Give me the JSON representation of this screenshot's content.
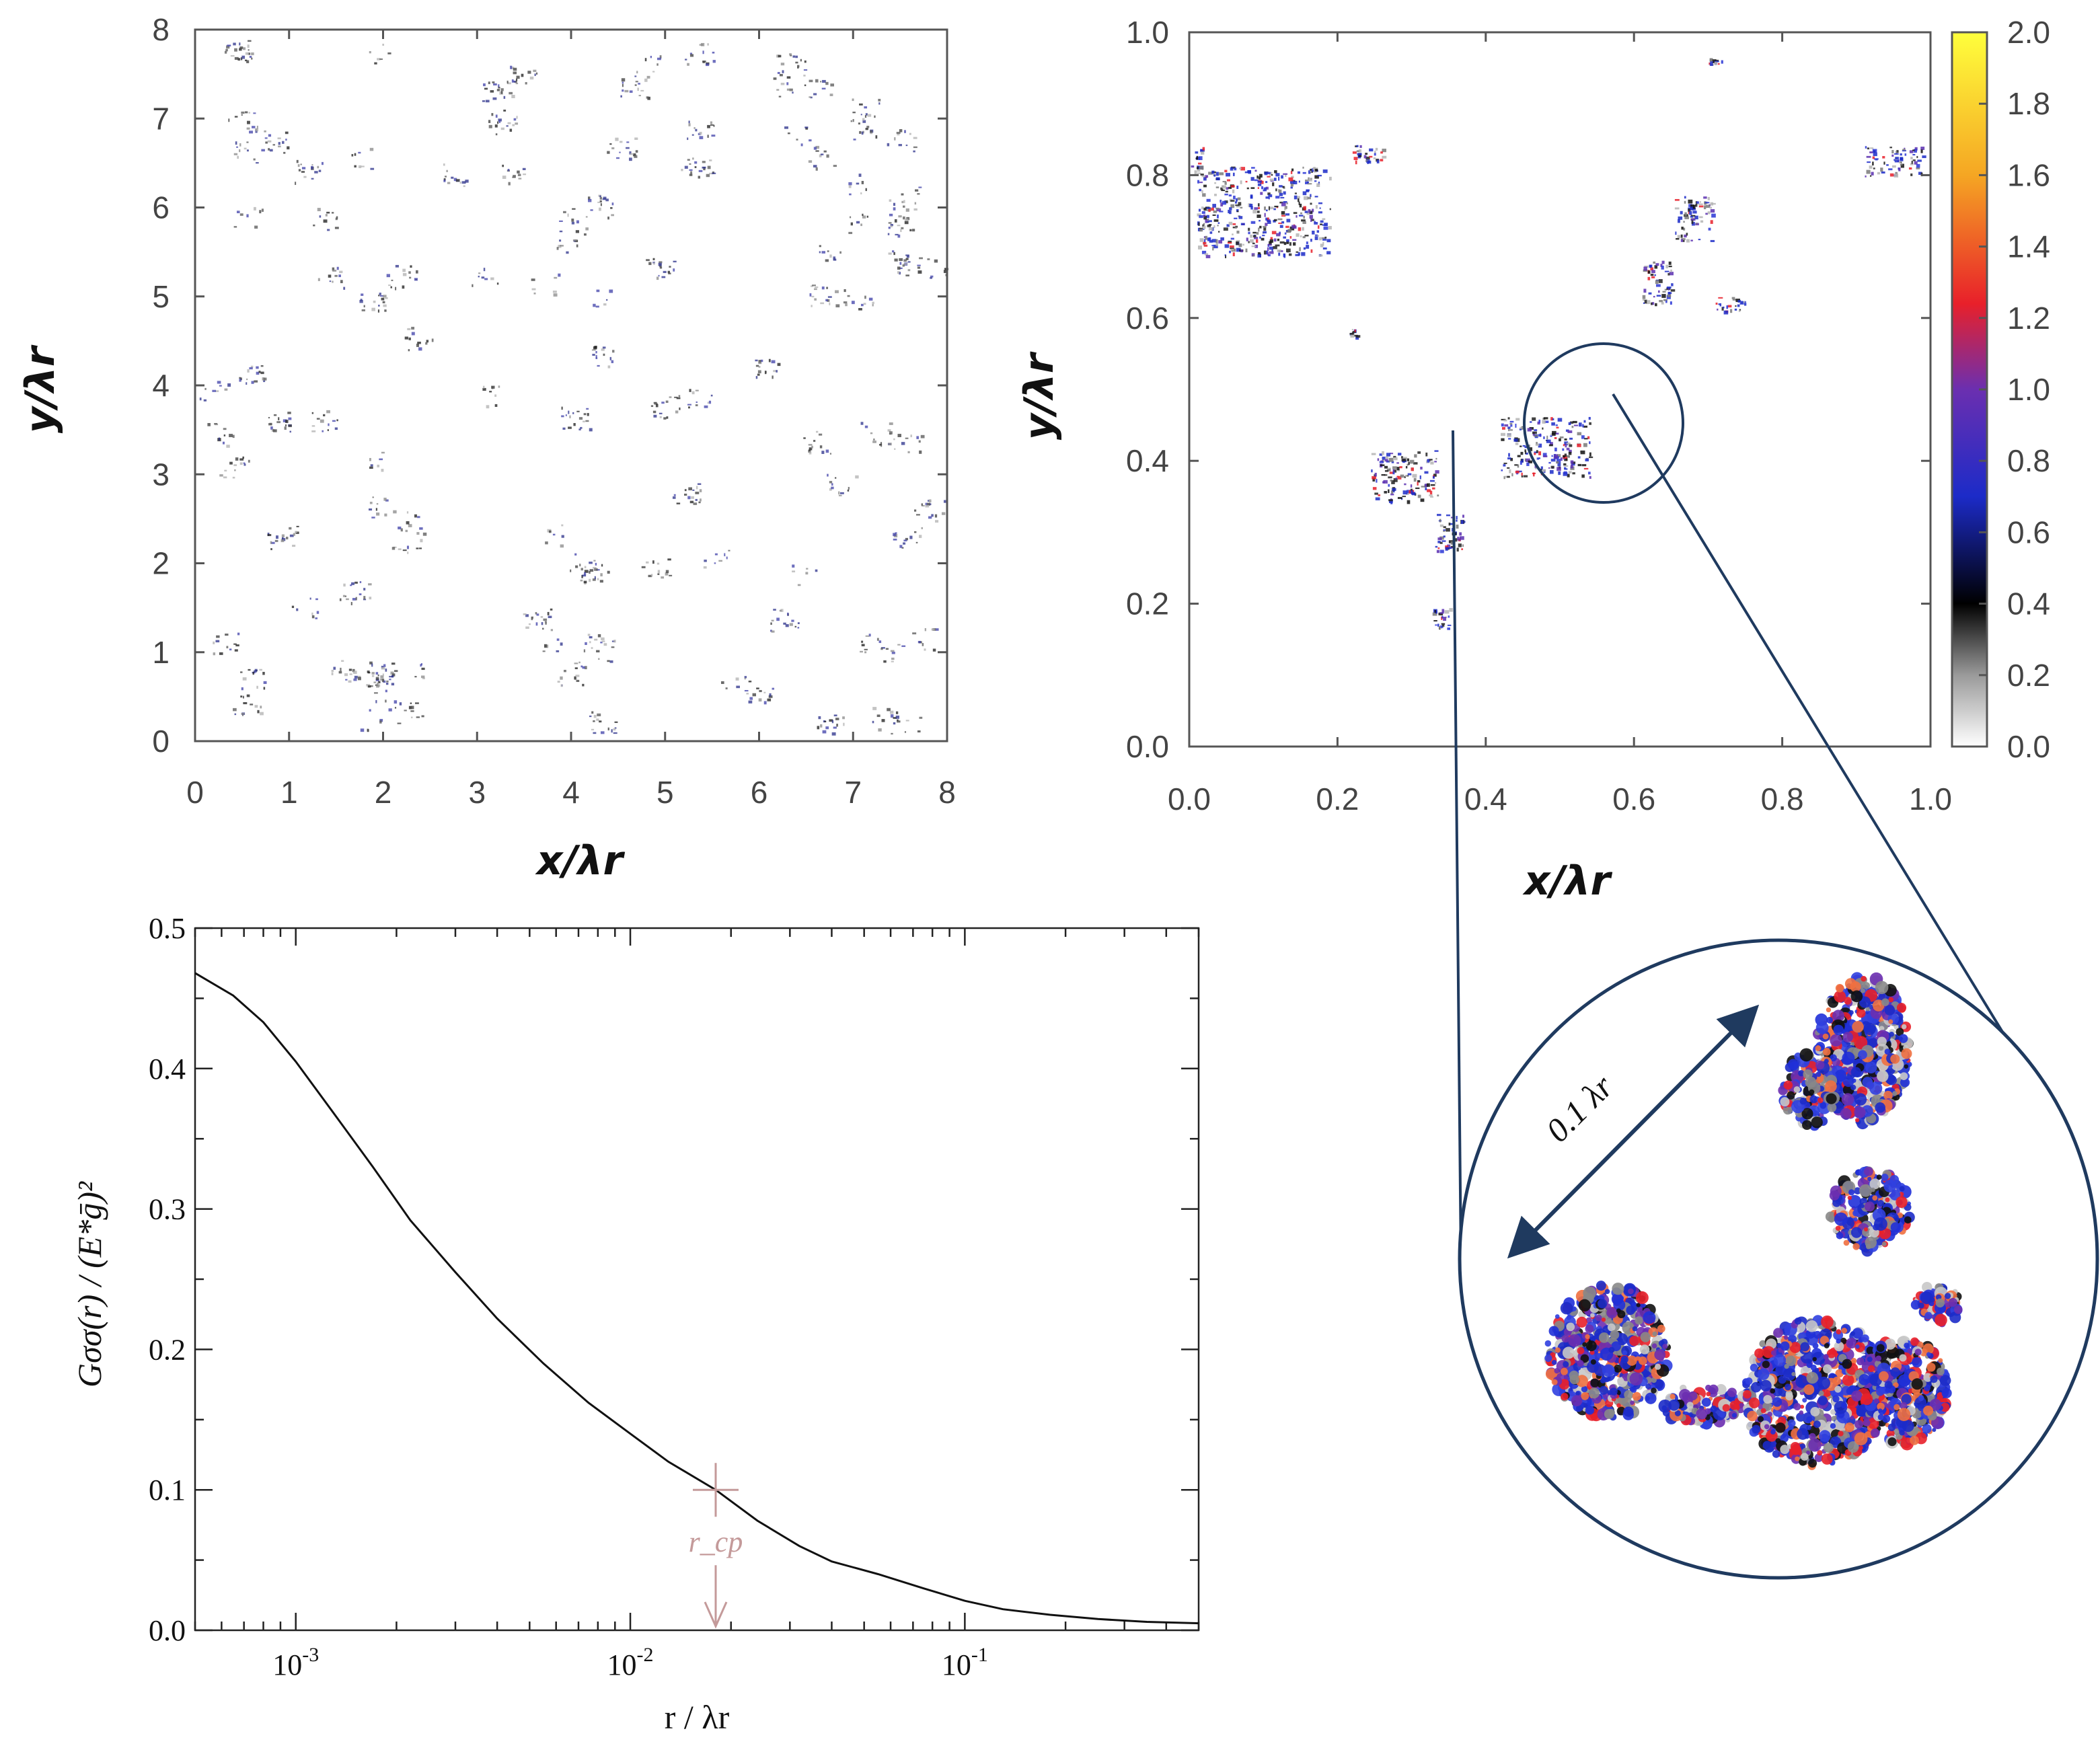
{
  "chart_data": [
    {
      "id": "contact-map-large",
      "type": "heatmap",
      "title": "",
      "xlabel": "x/λr",
      "ylabel": "y/λr",
      "xlim": [
        0,
        8
      ],
      "ylim": [
        0,
        8
      ],
      "x_ticks": [
        "0",
        "1",
        "2",
        "3",
        "4",
        "5",
        "6",
        "7",
        "8"
      ],
      "y_ticks": [
        "0",
        "1",
        "2",
        "3",
        "4",
        "5",
        "6",
        "7",
        "8"
      ]
    },
    {
      "id": "contact-map-zoom",
      "type": "heatmap",
      "title": "",
      "xlabel": "x/λr",
      "ylabel": "y/λr",
      "xlim": [
        0,
        1
      ],
      "ylim": [
        0,
        1
      ],
      "x_ticks": [
        "0.0",
        "0.2",
        "0.4",
        "0.6",
        "0.8",
        "1.0"
      ],
      "y_ticks": [
        "0.0",
        "0.2",
        "0.4",
        "0.6",
        "0.8",
        "1.0"
      ],
      "colorbar": {
        "range": [
          0,
          2
        ],
        "ticks": [
          "0.0",
          "0.2",
          "0.4",
          "0.6",
          "0.8",
          "1.0",
          "1.2",
          "1.4",
          "1.6",
          "1.8",
          "2.0"
        ],
        "colormap": [
          "#ffffff",
          "#9a9a9a",
          "#000000",
          "#1c2bc8",
          "#6b2fb0",
          "#e8202a",
          "#f5a623",
          "#ffff3c"
        ]
      },
      "highlight_circle": {
        "center": [
          0.48,
          0.45
        ],
        "radius": 0.105
      }
    },
    {
      "id": "inset-magnified",
      "type": "heatmap",
      "scale_label": "0.1 λr"
    },
    {
      "id": "stress-correlation",
      "type": "line",
      "title": "",
      "xlabel": "r / λr",
      "ylabel": "Gσσ(r) / (E*ḡ)²",
      "xscale": "log",
      "xlim": [
        0.0005,
        0.5
      ],
      "ylim": [
        0,
        0.5
      ],
      "x_ticks": [
        {
          "value": 0.001,
          "base": "10",
          "exp": "-3"
        },
        {
          "value": 0.01,
          "base": "10",
          "exp": "-2"
        },
        {
          "value": 0.1,
          "base": "10",
          "exp": "-1"
        }
      ],
      "y_ticks": [
        "0.0",
        "0.1",
        "0.2",
        "0.3",
        "0.4",
        "0.5"
      ],
      "series": [
        {
          "color": "#111111",
          "x": [
            0.0005,
            0.00065,
            0.0008,
            0.001,
            0.0013,
            0.0017,
            0.0022,
            0.003,
            0.004,
            0.0055,
            0.0075,
            0.01,
            0.013,
            0.018,
            0.024,
            0.032,
            0.04,
            0.055,
            0.075,
            0.1,
            0.13,
            0.18,
            0.25,
            0.35,
            0.5
          ],
          "y": [
            0.468,
            0.452,
            0.433,
            0.405,
            0.368,
            0.33,
            0.292,
            0.255,
            0.222,
            0.19,
            0.162,
            0.14,
            0.12,
            0.1,
            0.078,
            0.06,
            0.049,
            0.04,
            0.03,
            0.021,
            0.015,
            0.011,
            0.008,
            0.006,
            0.005
          ]
        }
      ],
      "annotation": {
        "label": "r_cp",
        "x": 0.018,
        "y": 0.1,
        "color": "#c49a9a"
      }
    }
  ]
}
